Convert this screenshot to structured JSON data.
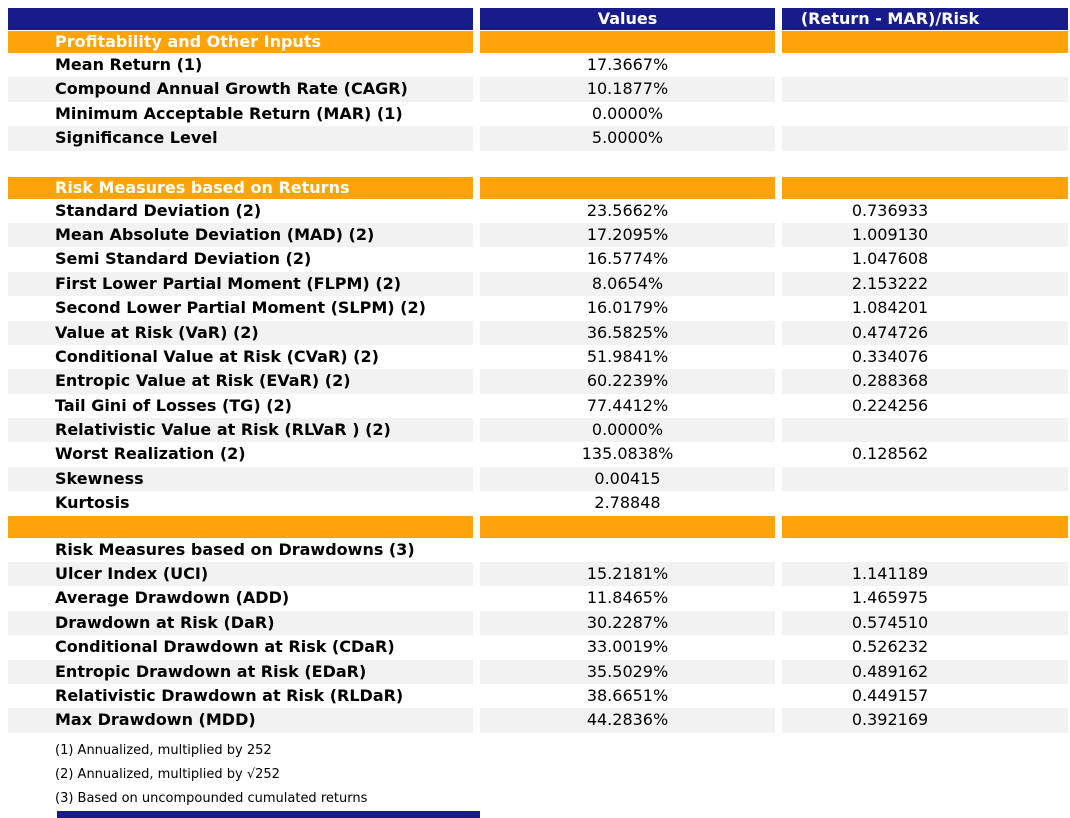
{
  "colors": {
    "header_bg": "#181c8a",
    "section_bg": "#ffa408",
    "stripe_bg": "#f2f2f2",
    "header_text": "#ffffff",
    "body_text": "#000000"
  },
  "chart_data": {
    "type": "table",
    "columns": [
      "",
      "Values",
      "(Return - MAR)/Risk"
    ],
    "rows": [
      {
        "type": "section",
        "label": "Profitability and Other Inputs",
        "value": "",
        "ratio": ""
      },
      {
        "type": "data",
        "shade": "white",
        "label": "Mean Return (1)",
        "value": "17.3667%",
        "ratio": ""
      },
      {
        "type": "data",
        "shade": "gray",
        "label": "Compound Annual Growth Rate (CAGR)",
        "value": "10.1877%",
        "ratio": ""
      },
      {
        "type": "data",
        "shade": "white",
        "label": "Minimum Acceptable Return (MAR) (1)",
        "value": "0.0000%",
        "ratio": ""
      },
      {
        "type": "data",
        "shade": "gray",
        "label": "Significance Level",
        "value": "5.0000%",
        "ratio": ""
      },
      {
        "type": "spacer"
      },
      {
        "type": "section",
        "label": "Risk Measures based on Returns",
        "value": "",
        "ratio": ""
      },
      {
        "type": "data",
        "shade": "white",
        "label": "Standard Deviation (2)",
        "value": "23.5662%",
        "ratio": "0.736933"
      },
      {
        "type": "data",
        "shade": "gray",
        "label": "Mean Absolute Deviation (MAD) (2)",
        "value": "17.2095%",
        "ratio": "1.009130"
      },
      {
        "type": "data",
        "shade": "white",
        "label": "Semi Standard Deviation (2)",
        "value": "16.5774%",
        "ratio": "1.047608"
      },
      {
        "type": "data",
        "shade": "gray",
        "label": "First Lower Partial Moment (FLPM) (2)",
        "value": "8.0654%",
        "ratio": "2.153222"
      },
      {
        "type": "data",
        "shade": "white",
        "label": "Second Lower Partial Moment (SLPM) (2)",
        "value": "16.0179%",
        "ratio": "1.084201"
      },
      {
        "type": "data",
        "shade": "gray",
        "label": "Value at Risk (VaR) (2)",
        "value": "36.5825%",
        "ratio": "0.474726"
      },
      {
        "type": "data",
        "shade": "white",
        "label": "Conditional Value at Risk (CVaR) (2)",
        "value": "51.9841%",
        "ratio": "0.334076"
      },
      {
        "type": "data",
        "shade": "gray",
        "label": "Entropic Value at Risk (EVaR) (2)",
        "value": "60.2239%",
        "ratio": "0.288368"
      },
      {
        "type": "data",
        "shade": "white",
        "label": "Tail Gini of Losses (TG) (2)",
        "value": "77.4412%",
        "ratio": "0.224256"
      },
      {
        "type": "data",
        "shade": "gray",
        "label": "Relativistic Value at Risk (RLVaR ) (2)",
        "value": "0.0000%",
        "ratio": ""
      },
      {
        "type": "data",
        "shade": "white",
        "label": "Worst Realization (2)",
        "value": "135.0838%",
        "ratio": "0.128562"
      },
      {
        "type": "data",
        "shade": "gray",
        "label": "Skewness",
        "value": "0.00415",
        "ratio": ""
      },
      {
        "type": "data",
        "shade": "white",
        "label": "Kurtosis",
        "value": "2.78848",
        "ratio": ""
      },
      {
        "type": "section",
        "label": "",
        "value": "",
        "ratio": ""
      },
      {
        "type": "data",
        "shade": "white",
        "label": "Risk Measures based on Drawdowns (3)",
        "value": "",
        "ratio": ""
      },
      {
        "type": "data",
        "shade": "gray",
        "label": "Ulcer Index (UCI)",
        "value": "15.2181%",
        "ratio": "1.141189"
      },
      {
        "type": "data",
        "shade": "white",
        "label": "Average Drawdown (ADD)",
        "value": "11.8465%",
        "ratio": "1.465975"
      },
      {
        "type": "data",
        "shade": "gray",
        "label": "Drawdown at Risk (DaR)",
        "value": "30.2287%",
        "ratio": "0.574510"
      },
      {
        "type": "data",
        "shade": "white",
        "label": "Conditional Drawdown at Risk (CDaR)",
        "value": "33.0019%",
        "ratio": "0.526232"
      },
      {
        "type": "data",
        "shade": "gray",
        "label": "Entropic Drawdown at Risk (EDaR)",
        "value": "35.5029%",
        "ratio": "0.489162"
      },
      {
        "type": "data",
        "shade": "white",
        "label": "Relativistic Drawdown at Risk (RLDaR)",
        "value": "38.6651%",
        "ratio": "0.449157"
      },
      {
        "type": "data",
        "shade": "gray",
        "label": "Max Drawdown (MDD)",
        "value": "44.2836%",
        "ratio": "0.392169"
      }
    ],
    "footnotes": [
      "(1) Annualized, multiplied by 252",
      "(2) Annualized, multiplied by √252",
      "(3) Based on uncompounded cumulated returns"
    ]
  }
}
